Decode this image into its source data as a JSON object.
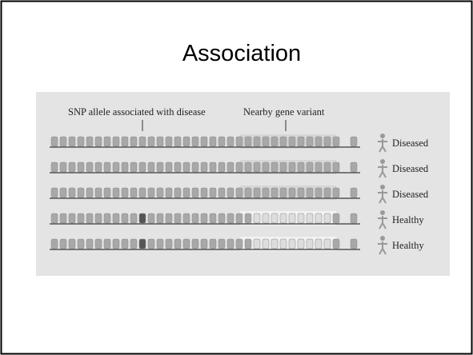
{
  "slide": {
    "title": "Association",
    "figure": {
      "labels": [
        "SNP allele associated with disease",
        "Nearby gene variant"
      ],
      "rows": [
        {
          "status": "Diseased"
        },
        {
          "status": "Diseased"
        },
        {
          "status": "Diseased"
        },
        {
          "status": "Healthy"
        },
        {
          "status": "Healthy"
        }
      ]
    }
  }
}
